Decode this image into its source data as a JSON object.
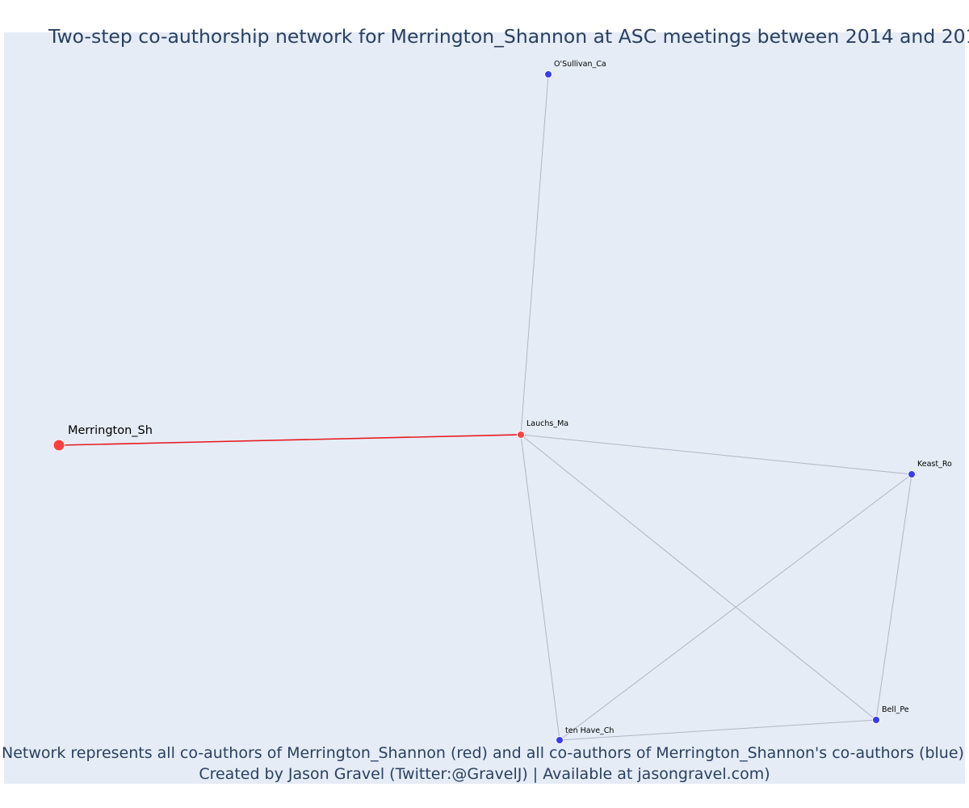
{
  "figure": {
    "title": "Two-step co-authorship network for Merrington_Shannon at ASC meetings between 2014 and 201",
    "caption_line1": "Network represents all co-authors of Merrington_Shannon (red) and all co-authors of Merrington_Shannon's co-authors (blue)",
    "caption_line2": "Created by Jason Gravel (Twitter:@GravelJ) | Available at jasongravel.com)"
  },
  "colors": {
    "paper_background": "#ffffff",
    "plot_background": "#e5ecf6",
    "text": "#2a3f5f",
    "first_degree": "#ff4040",
    "second_degree": "#3b3bf0",
    "focal_edge": "#e8191e",
    "other_edge": "#b4b4c4"
  },
  "chart_data": {
    "type": "network",
    "legend": "none",
    "grid": false,
    "nodes": [
      {
        "id": "Merrington_Sh",
        "label": "Merrington_Sh",
        "group": "focal"
      },
      {
        "id": "Lauchs_Ma",
        "label": "Lauchs_Ma",
        "group": "co-author"
      },
      {
        "id": "O'Sullivan_Ca",
        "label": "O'Sullivan_Ca",
        "group": "second-degree"
      },
      {
        "id": "Keast_Ro",
        "label": "Keast_Ro",
        "group": "second-degree"
      },
      {
        "id": "Bell_Pe",
        "label": "Bell_Pe",
        "group": "second-degree"
      },
      {
        "id": "ten Have_Ch",
        "label": "ten Have_Ch",
        "group": "second-degree"
      }
    ],
    "edges": [
      {
        "source": "Merrington_Sh",
        "target": "Lauchs_Ma",
        "kind": "focal"
      },
      {
        "source": "Lauchs_Ma",
        "target": "O'Sullivan_Ca",
        "kind": "other"
      },
      {
        "source": "Lauchs_Ma",
        "target": "Keast_Ro",
        "kind": "other"
      },
      {
        "source": "Lauchs_Ma",
        "target": "Bell_Pe",
        "kind": "other"
      },
      {
        "source": "Lauchs_Ma",
        "target": "ten Have_Ch",
        "kind": "other"
      },
      {
        "source": "Keast_Ro",
        "target": "Bell_Pe",
        "kind": "other"
      },
      {
        "source": "Keast_Ro",
        "target": "ten Have_Ch",
        "kind": "other"
      },
      {
        "source": "Bell_Pe",
        "target": "ten Have_Ch",
        "kind": "other"
      }
    ]
  }
}
